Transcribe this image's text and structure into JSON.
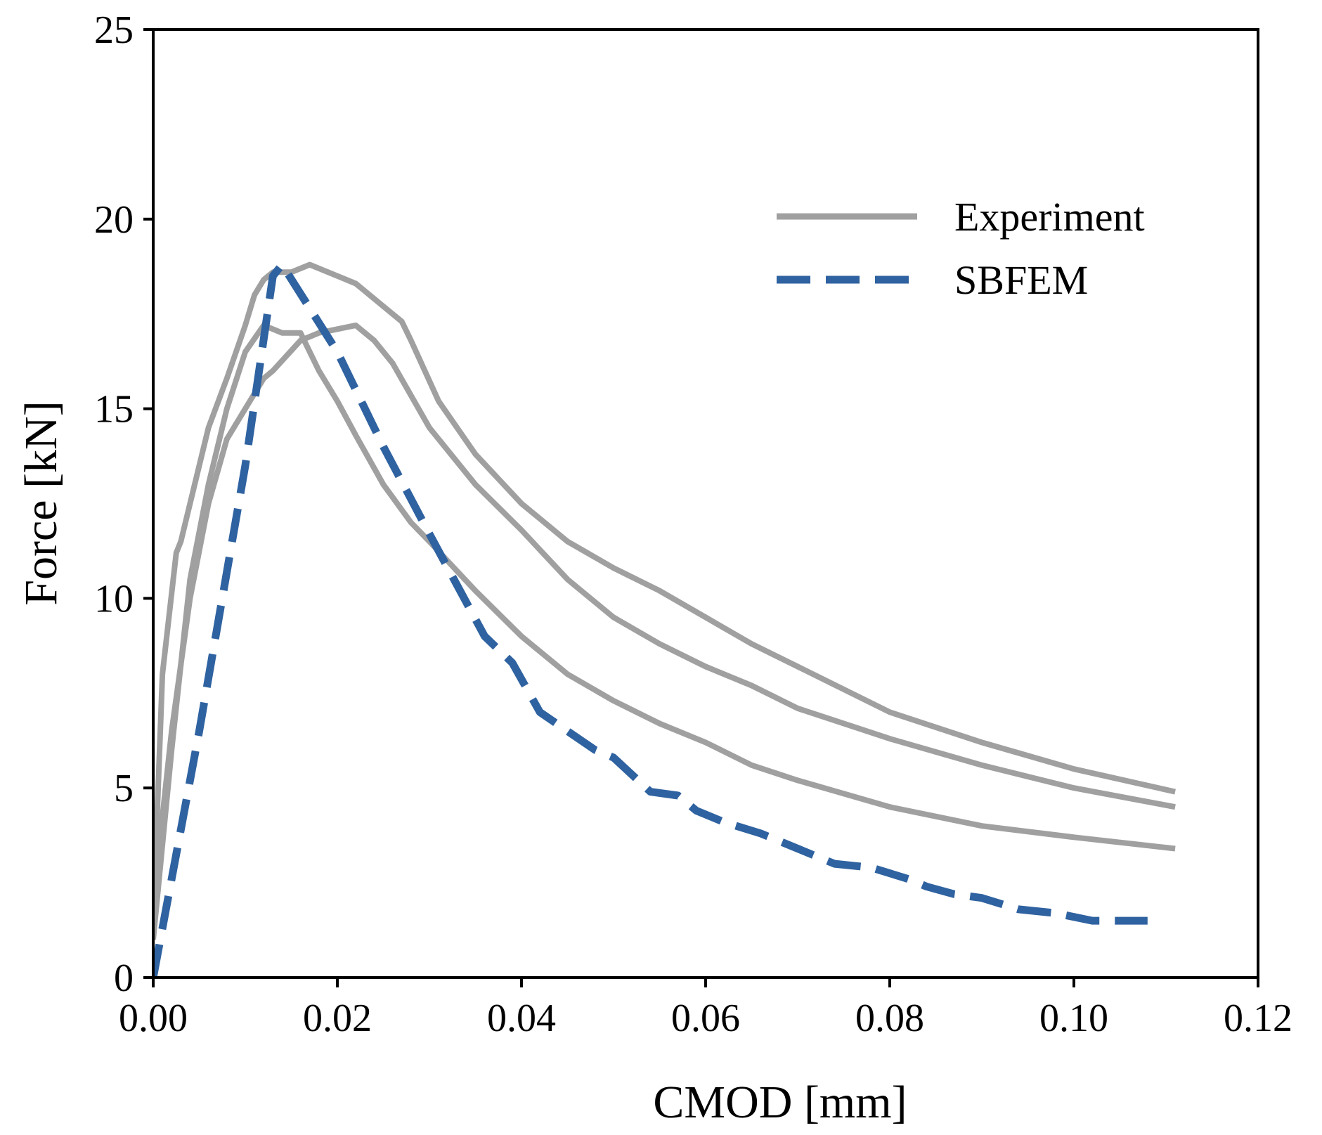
{
  "chart_data": {
    "type": "line",
    "title": "",
    "xlabel": "CMOD [mm]",
    "ylabel": "Force [kN]",
    "xlim": [
      0,
      0.12
    ],
    "ylim": [
      0,
      25
    ],
    "xticks": [
      0,
      0.02,
      0.04,
      0.06,
      0.08,
      0.1,
      0.12
    ],
    "xtick_labels": [
      "0.00",
      "0.02",
      "0.04",
      "0.06",
      "0.08",
      "0.10",
      "0.12"
    ],
    "yticks": [
      0,
      5,
      10,
      15,
      20,
      25
    ],
    "ytick_labels": [
      "0",
      "5",
      "10",
      "15",
      "20",
      "25"
    ],
    "grid": false,
    "legend": {
      "position": "top-right",
      "entries": [
        {
          "label": "Experiment",
          "series": "Experiment",
          "color": "#a0a0a0",
          "style": "solid"
        },
        {
          "label": "SBFEM",
          "series": "SBFEM",
          "color": "#2f62a0",
          "style": "dashed"
        }
      ]
    },
    "series": [
      {
        "name": "Experiment",
        "color": "#a0a0a0",
        "style": "solid",
        "x": [
          0,
          0.001,
          0.0025,
          0.003,
          0.004,
          0.006,
          0.008,
          0.01,
          0.011,
          0.012,
          0.013,
          0.015,
          0.017,
          0.02,
          0.022,
          0.025,
          0.027,
          0.028,
          0.031,
          0.035,
          0.04,
          0.045,
          0.05,
          0.055,
          0.06,
          0.065,
          0.07,
          0.08,
          0.09,
          0.1,
          0.111
        ],
        "y": [
          1.5,
          8.0,
          11.2,
          11.5,
          12.5,
          14.5,
          15.8,
          17.2,
          18.0,
          18.4,
          18.6,
          18.6,
          18.8,
          18.5,
          18.3,
          17.7,
          17.3,
          16.8,
          15.2,
          13.8,
          12.5,
          11.5,
          10.8,
          10.2,
          9.5,
          8.8,
          8.2,
          7.0,
          6.2,
          5.5,
          4.9
        ]
      },
      {
        "name": "Experiment",
        "color": "#a0a0a0",
        "style": "solid",
        "x": [
          0,
          0.002,
          0.004,
          0.006,
          0.008,
          0.01,
          0.012,
          0.013,
          0.016,
          0.018,
          0.02,
          0.022,
          0.024,
          0.026,
          0.03,
          0.035,
          0.04,
          0.045,
          0.05,
          0.055,
          0.06,
          0.065,
          0.07,
          0.08,
          0.09,
          0.1,
          0.111
        ],
        "y": [
          2.0,
          6.5,
          10.0,
          12.5,
          14.2,
          15.0,
          15.8,
          16.0,
          16.8,
          17.0,
          17.1,
          17.2,
          16.8,
          16.2,
          14.5,
          13.0,
          11.8,
          10.5,
          9.5,
          8.8,
          8.2,
          7.7,
          7.1,
          6.3,
          5.6,
          5.0,
          4.5
        ]
      },
      {
        "name": "Experiment",
        "color": "#a0a0a0",
        "style": "solid",
        "x": [
          0,
          0.002,
          0.004,
          0.006,
          0.008,
          0.01,
          0.012,
          0.014,
          0.016,
          0.018,
          0.02,
          0.022,
          0.025,
          0.028,
          0.03,
          0.035,
          0.04,
          0.045,
          0.05,
          0.055,
          0.06,
          0.065,
          0.07,
          0.08,
          0.09,
          0.1,
          0.111
        ],
        "y": [
          1.0,
          6.0,
          10.5,
          13.0,
          15.0,
          16.5,
          17.2,
          17.0,
          17.0,
          16.0,
          15.2,
          14.3,
          13.0,
          12.0,
          11.5,
          10.2,
          9.0,
          8.0,
          7.3,
          6.7,
          6.2,
          5.6,
          5.2,
          4.5,
          4.0,
          3.7,
          3.4
        ]
      },
      {
        "name": "SBFEM",
        "color": "#2f62a0",
        "style": "dashed",
        "x": [
          0,
          0.005,
          0.01,
          0.013,
          0.014,
          0.02,
          0.025,
          0.03,
          0.036,
          0.039,
          0.042,
          0.045,
          0.048,
          0.05,
          0.054,
          0.057,
          0.059,
          0.062,
          0.066,
          0.07,
          0.074,
          0.078,
          0.082,
          0.084,
          0.087,
          0.09,
          0.094,
          0.098,
          0.102,
          0.108
        ],
        "y": [
          0,
          6.5,
          13.5,
          18.5,
          18.8,
          16.5,
          14.0,
          11.7,
          9.0,
          8.3,
          7.0,
          6.5,
          6.0,
          5.8,
          4.9,
          4.8,
          4.4,
          4.1,
          3.8,
          3.4,
          3.0,
          2.9,
          2.6,
          2.4,
          2.2,
          2.1,
          1.8,
          1.7,
          1.5,
          1.5
        ]
      }
    ]
  }
}
